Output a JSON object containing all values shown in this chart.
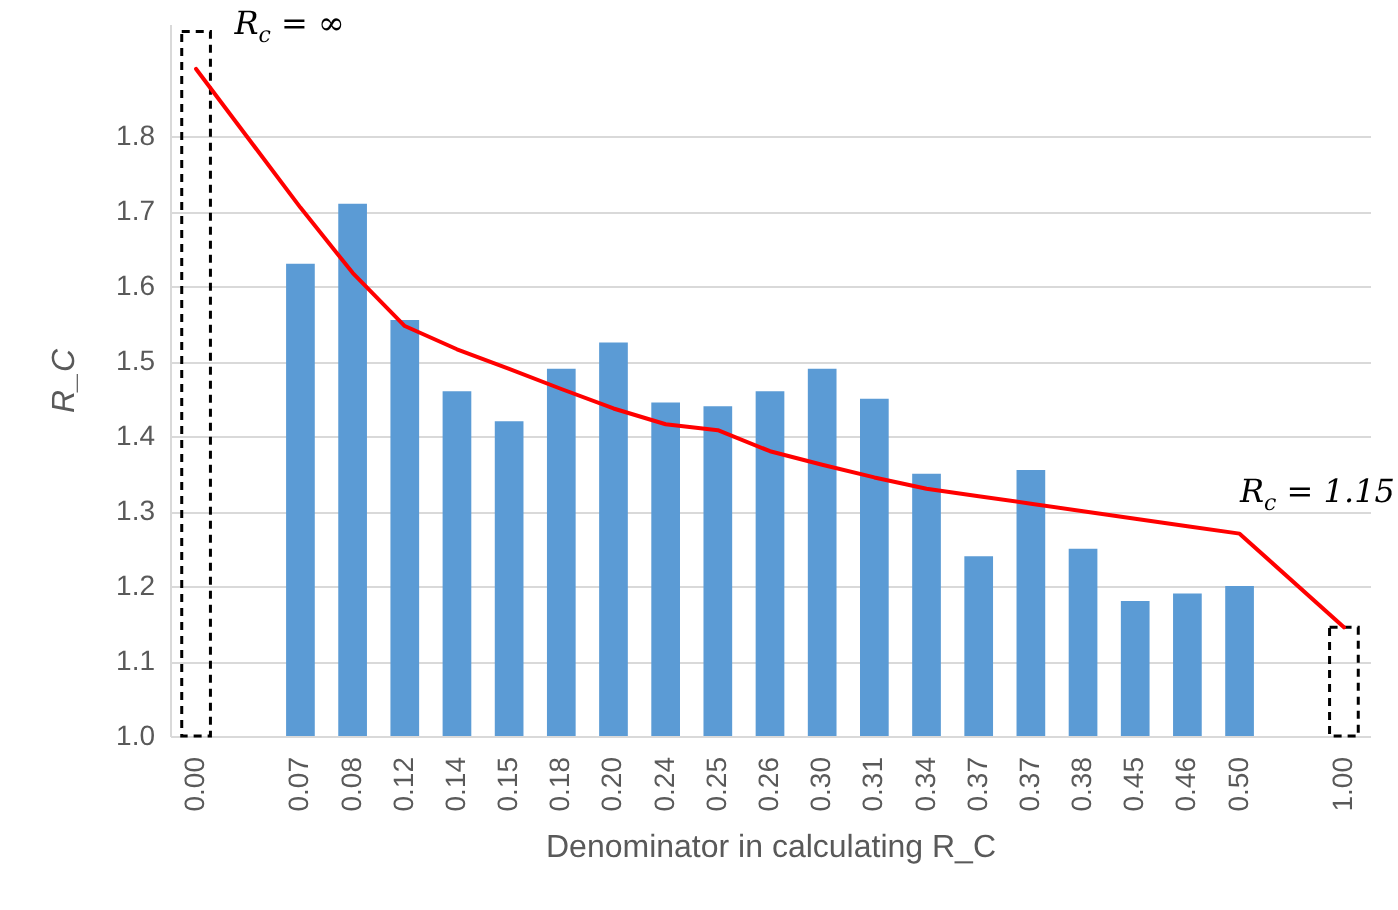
{
  "chart_data": {
    "type": "bar",
    "xlabel": "Denominator in calculating R_C",
    "ylabel": "R_C",
    "categories": [
      "0.00",
      null,
      "0.07",
      "0.08",
      "0.12",
      "0.14",
      "0.15",
      "0.18",
      "0.20",
      "0.24",
      "0.25",
      "0.26",
      "0.30",
      "0.31",
      "0.34",
      "0.37",
      "0.37",
      "0.38",
      "0.45",
      "0.46",
      "0.50",
      null,
      "1.00"
    ],
    "series": [
      {
        "color": "#5b9bd5",
        "values": [
          null,
          null,
          1.63,
          1.71,
          1.555,
          1.46,
          1.42,
          1.49,
          1.525,
          1.445,
          1.44,
          1.46,
          1.49,
          1.45,
          1.35,
          1.24,
          1.355,
          1.25,
          1.18,
          1.19,
          1.2,
          null,
          null
        ]
      },
      {
        "type": "bar",
        "color": "#000000",
        "line_style": "dashed",
        "values": [
          1.94,
          null,
          null,
          null,
          null,
          null,
          null,
          null,
          null,
          null,
          null,
          null,
          null,
          null,
          null,
          null,
          null,
          null,
          null,
          null,
          null,
          null,
          1.145
        ]
      },
      {
        "type": "line",
        "color": "#ff0000",
        "values": [
          1.89,
          null,
          1.705,
          1.618,
          1.547,
          1.516,
          1.49,
          1.463,
          1.437,
          1.416,
          1.408,
          1.38,
          1.362,
          1.345,
          1.33,
          1.32,
          1.31,
          1.3,
          1.29,
          1.28,
          1.27,
          null,
          1.145
        ]
      }
    ],
    "ylim": [
      1,
      1.95
    ],
    "yticks": [
      {
        "value": 1,
        "label": "1.0"
      },
      1.1,
      1.2,
      1.3,
      1.4,
      1.5,
      1.6,
      1.7,
      1.8
    ],
    "grid": "y",
    "annotations": [
      "R$_{c}$ = ∞",
      "R$_{c}$ = 1.15"
    ]
  }
}
